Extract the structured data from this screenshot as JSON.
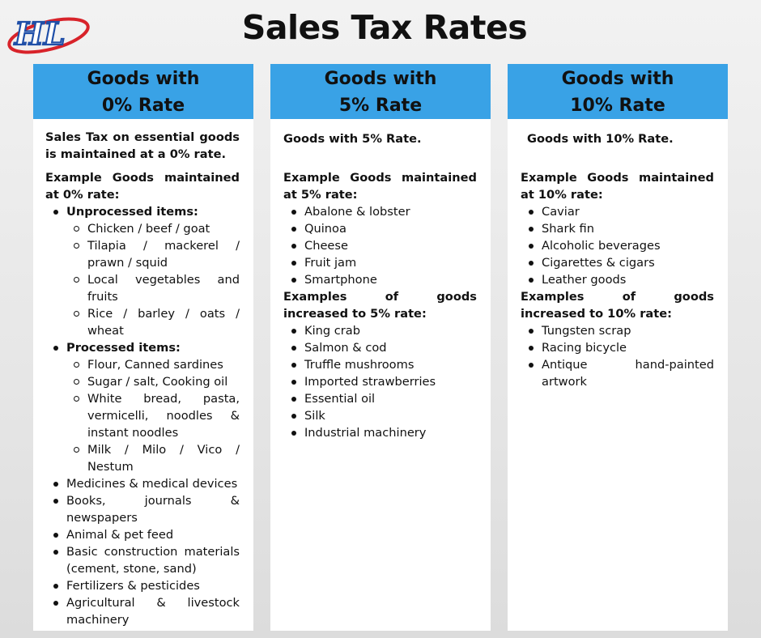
{
  "page": {
    "title": "Sales Tax Rates"
  },
  "logo": {
    "text": "HL"
  },
  "columns": [
    {
      "header_line1": "Goods with",
      "header_line2": "0% Rate",
      "intro": "Sales Tax on essential goods is maintained at a 0% rate.",
      "section1_heading": "Example Goods maintained at 0% rate:",
      "unprocessed_heading": "Unprocessed items:",
      "unprocessed_items": [
        "Chicken / beef / goat",
        "Tilapia / mackerel / prawn / squid",
        "Local vegetables and fruits",
        "Rice / barley / oats / wheat"
      ],
      "processed_heading": "Processed items:",
      "processed_items": [
        "Flour, Canned sardines",
        "Sugar / salt, Cooking oil",
        "White bread, pasta, vermicelli, noodles & instant noodles",
        "Milk / Milo / Vico / Nestum"
      ],
      "other_items": [
        "Medicines & medical devices",
        "Books, journals & newspapers",
        "Animal & pet feed",
        "Basic construction materials (cement, stone, sand)",
        "Fertilizers & pesticides",
        "Agricultural & livestock machinery"
      ]
    },
    {
      "header_line1": "Goods with",
      "header_line2": "5% Rate",
      "intro": "Goods with 5% Rate.",
      "section1_heading": "Example Goods maintained at 5% rate:",
      "section1_items": [
        "Abalone & lobster",
        "Quinoa",
        "Cheese",
        "Fruit jam",
        "Smartphone"
      ],
      "section2_heading": "Examples of goods increased to 5% rate:",
      "section2_items": [
        "King crab",
        "Salmon & cod",
        "Truffle mushrooms",
        "Imported strawberries",
        "Essential oil",
        "Silk",
        "Industrial machinery"
      ]
    },
    {
      "header_line1": "Goods with",
      "header_line2": "10% Rate",
      "intro": "Goods with 10% Rate.",
      "section1_heading": "Example Goods maintained at 10% rate:",
      "section1_items": [
        "Caviar",
        "Shark fin",
        "Alcoholic beverages",
        "Cigarettes & cigars",
        "Leather goods"
      ],
      "section2_heading": "Examples of goods increased to 10% rate:",
      "section2_items": [
        "Tungsten scrap",
        "Racing bicycle",
        "Antique hand-painted artwork"
      ]
    }
  ],
  "colors": {
    "header_blue": "#39a2e6",
    "logo_blue": "#1f4fa8",
    "logo_red": "#d8232a"
  }
}
